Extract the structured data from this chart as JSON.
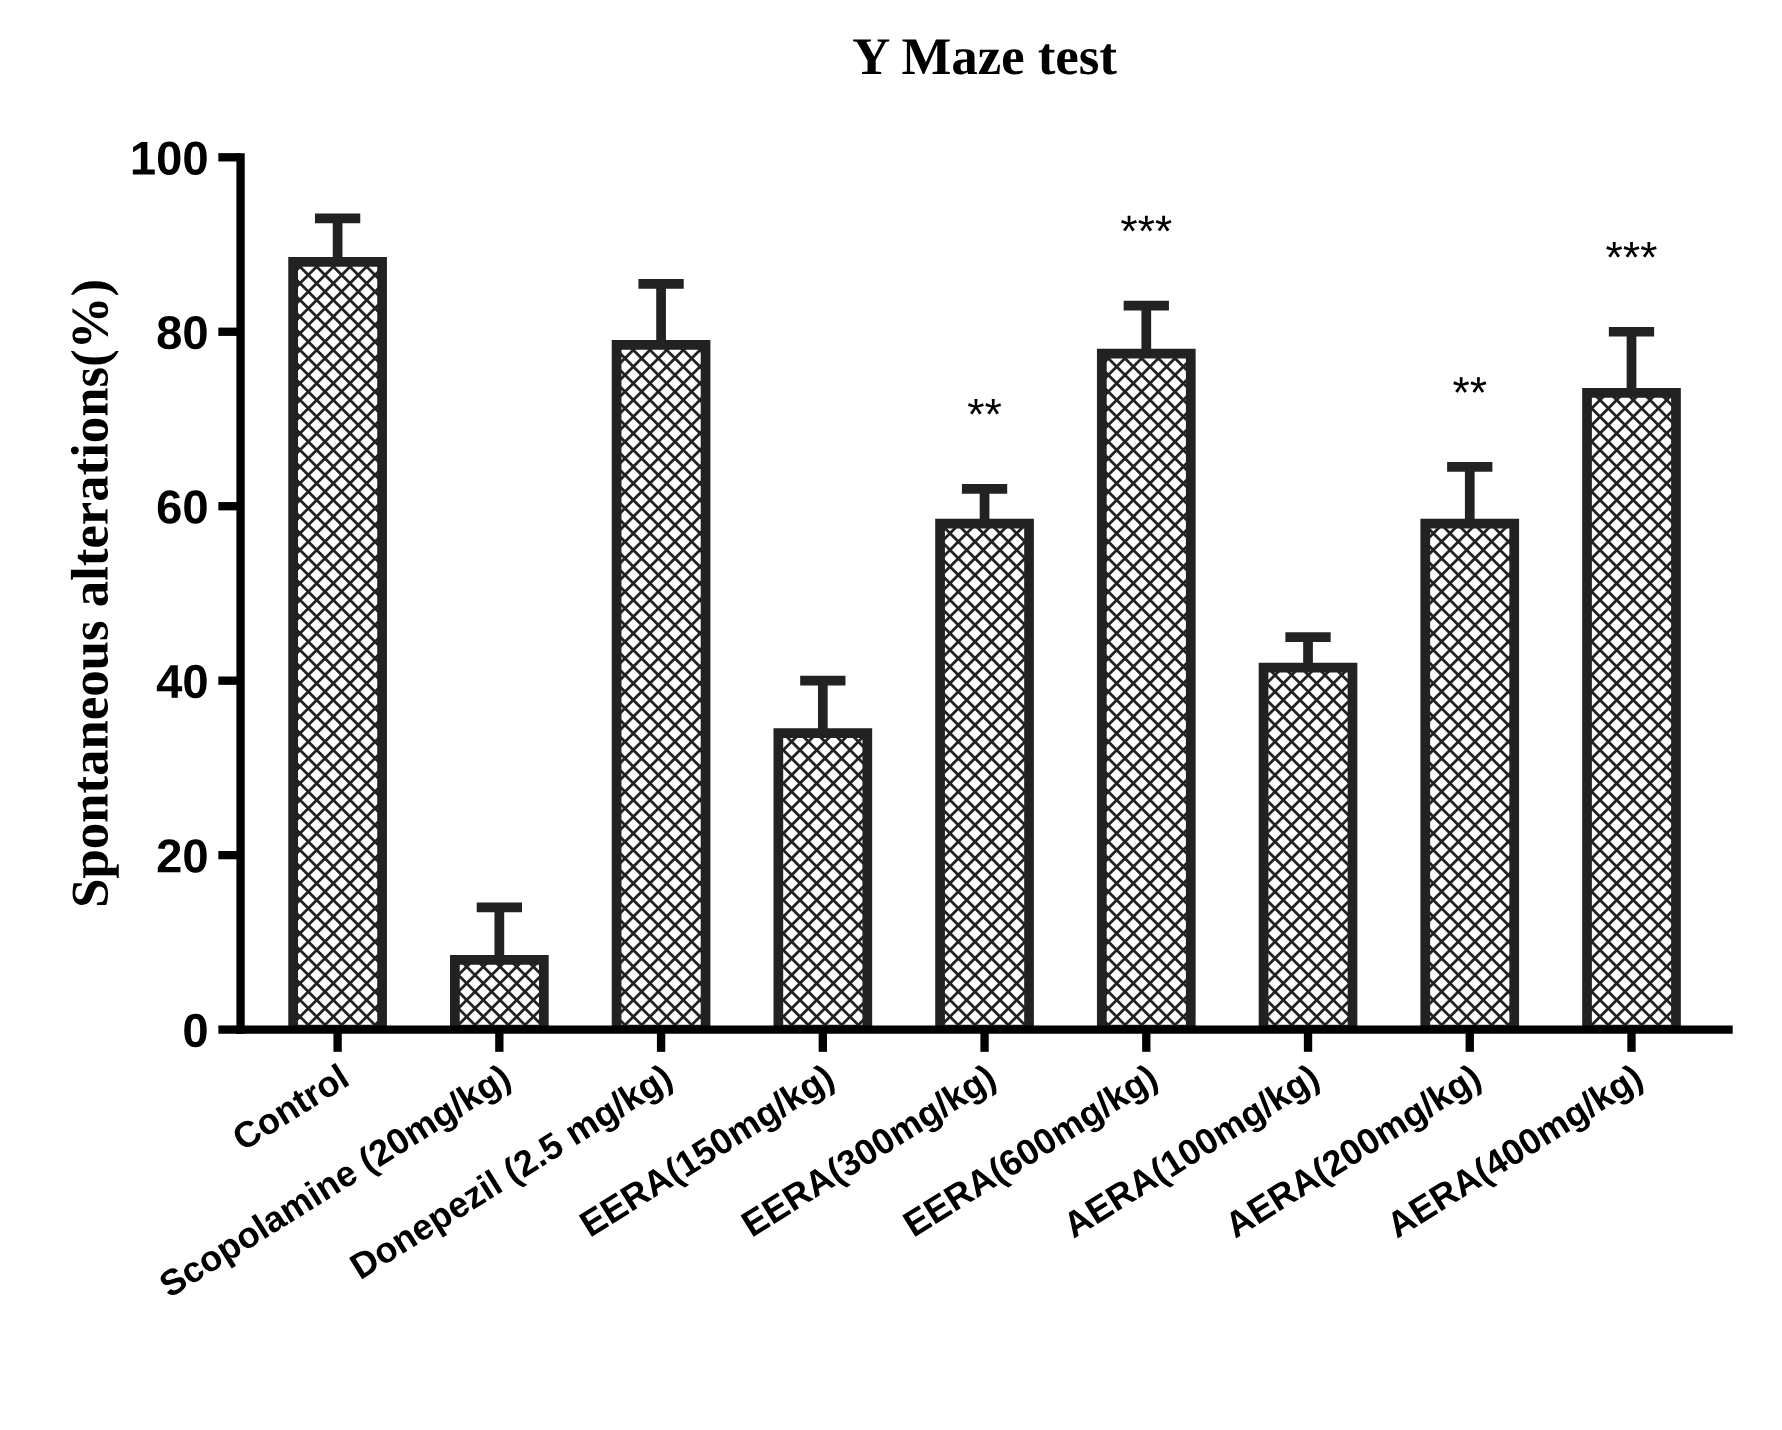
{
  "chart_data": {
    "type": "bar",
    "title": "Y Maze test",
    "ylabel": "Spontaneous alterations(%)",
    "categories": [
      "Control",
      "Scopolamine (20mg/kg)",
      "Donepezil (2.5 mg/kg)",
      "EERA(150mg/kg)",
      "EERA(300mg/kg)",
      "EERA(600mg/kg)",
      "AERA(100mg/kg)",
      "AERA(200mg/kg)",
      "AERA(400mg/kg)"
    ],
    "values": [
      88,
      8,
      78.5,
      34,
      58,
      77.5,
      41.5,
      58,
      73
    ],
    "errors": [
      [
        88,
        93
      ],
      [
        8,
        14
      ],
      [
        78.5,
        85.5
      ],
      [
        34,
        40
      ],
      [
        58,
        62
      ],
      [
        77.5,
        83
      ],
      [
        41.5,
        45
      ],
      [
        58,
        64.5
      ],
      [
        73,
        80
      ]
    ],
    "color": "#222222",
    "ylim": [
      0,
      100
    ],
    "yticks": [
      0,
      20,
      40,
      60,
      80,
      100
    ],
    "grid": false,
    "legend": false,
    "annotations": [
      {
        "text": "**",
        "x": "EERA(300mg/kg)",
        "y": 62
      },
      {
        "text": "***",
        "x": "EERA(600mg/kg)",
        "y": 83
      },
      {
        "text": "**",
        "x": "AERA(200mg/kg)",
        "y": 64.5
      },
      {
        "text": "***",
        "x": "AERA(400mg/kg)",
        "y": 80
      }
    ]
  }
}
